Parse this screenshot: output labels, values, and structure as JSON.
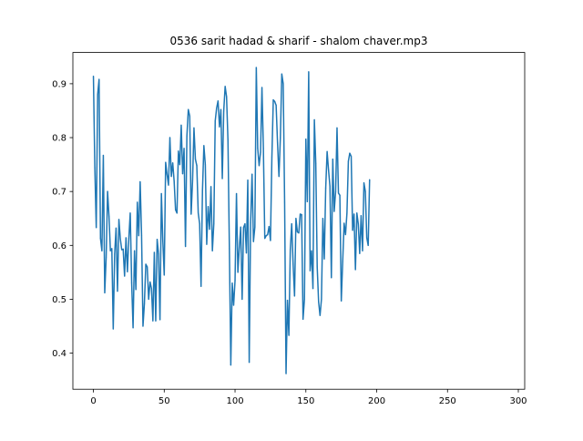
{
  "chart_data": {
    "type": "line",
    "title": "0536 sarit hadad & sharif - shalom chaver.mp3",
    "xlabel": "",
    "ylabel": "",
    "xlim": [
      -14.5,
      304.5
    ],
    "ylim": [
      0.333,
      0.958
    ],
    "x_ticks": [
      0,
      50,
      100,
      150,
      200,
      250,
      300
    ],
    "y_ticks": [
      0.4,
      0.5,
      0.6,
      0.7,
      0.8,
      0.9
    ],
    "grid": false,
    "legend": "none",
    "colors": {
      "line": "#1f77b4",
      "axes": "#000000",
      "background": "#ffffff"
    },
    "series": [
      {
        "values": [
          0.914,
          0.744,
          0.633,
          0.88,
          0.908,
          0.613,
          0.59,
          0.767,
          0.512,
          0.578,
          0.7,
          0.654,
          0.59,
          0.594,
          0.445,
          0.584,
          0.632,
          0.515,
          0.648,
          0.612,
          0.592,
          0.593,
          0.543,
          0.614,
          0.551,
          0.613,
          0.66,
          0.531,
          0.447,
          0.59,
          0.518,
          0.68,
          0.618,
          0.718,
          0.619,
          0.45,
          0.492,
          0.565,
          0.56,
          0.5,
          0.532,
          0.52,
          0.46,
          0.587,
          0.46,
          0.611,
          0.584,
          0.462,
          0.696,
          0.609,
          0.545,
          0.754,
          0.732,
          0.712,
          0.8,
          0.728,
          0.753,
          0.719,
          0.666,
          0.66,
          0.775,
          0.75,
          0.823,
          0.733,
          0.78,
          0.598,
          0.803,
          0.852,
          0.84,
          0.658,
          0.72,
          0.818,
          0.76,
          0.748,
          0.66,
          0.64,
          0.524,
          0.702,
          0.785,
          0.75,
          0.602,
          0.672,
          0.63,
          0.709,
          0.59,
          0.64,
          0.831,
          0.855,
          0.868,
          0.82,
          0.852,
          0.724,
          0.849,
          0.895,
          0.876,
          0.795,
          0.594,
          0.378,
          0.53,
          0.489,
          0.535,
          0.696,
          0.55,
          0.596,
          0.634,
          0.5,
          0.633,
          0.64,
          0.586,
          0.721,
          0.383,
          0.642,
          0.732,
          0.607,
          0.634,
          0.93,
          0.78,
          0.748,
          0.773,
          0.893,
          0.78,
          0.613,
          0.618,
          0.62,
          0.635,
          0.609,
          0.763,
          0.87,
          0.867,
          0.86,
          0.79,
          0.728,
          0.8,
          0.918,
          0.9,
          0.68,
          0.362,
          0.498,
          0.433,
          0.592,
          0.64,
          0.565,
          0.506,
          0.65,
          0.625,
          0.623,
          0.658,
          0.657,
          0.463,
          0.5,
          0.797,
          0.681,
          0.922,
          0.553,
          0.59,
          0.52,
          0.833,
          0.752,
          0.56,
          0.495,
          0.47,
          0.5,
          0.65,
          0.575,
          0.706,
          0.774,
          0.74,
          0.71,
          0.54,
          0.76,
          0.663,
          0.7,
          0.818,
          0.697,
          0.693,
          0.497,
          0.57,
          0.641,
          0.62,
          0.66,
          0.756,
          0.771,
          0.765,
          0.628,
          0.658,
          0.555,
          0.66,
          0.64,
          0.585,
          0.655,
          0.59,
          0.716,
          0.7,
          0.614,
          0.6,
          0.722
        ]
      }
    ]
  }
}
